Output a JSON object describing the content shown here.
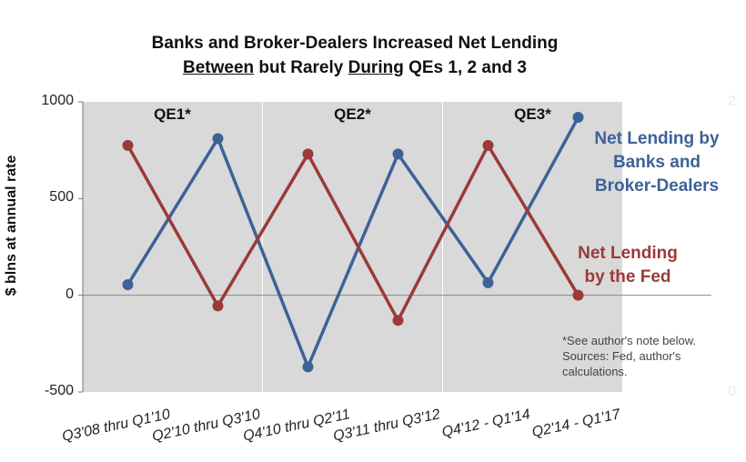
{
  "title_line1": "Banks and Broker-Dealers Increased Net Lending",
  "title_line2_a": "Between",
  "title_line2_b": " but Rarely ",
  "title_line2_c": "During",
  "title_line2_d": " QEs 1, 2 and 3",
  "note_lines": [
    "*See author's note below.",
    "Sources: Fed, author's",
    "calculations."
  ],
  "chart_data": {
    "type": "line",
    "ylabel": "$ blns at annual rate",
    "ylim": [
      -500,
      1000
    ],
    "yticks": [
      "1000",
      "500",
      "0",
      "-500"
    ],
    "yticks_right": [
      "2",
      "0"
    ],
    "categories": [
      "Q3'08 thru Q1'10",
      "Q2'10 thru Q3'10",
      "Q4'10 thru Q2'11",
      "Q3'11 thru Q3'12",
      "Q4'12 - Q1'14",
      "Q2'14 - Q1'17"
    ],
    "x": [
      1,
      2,
      3,
      4,
      5,
      6,
      7
    ],
    "series": [
      {
        "name": "Net Lending by Banks and Broker-Dealers",
        "name_lines": [
          "Net Lending by",
          "Banks and",
          "Broker-Dealers"
        ],
        "color": "#3d6296",
        "values": [
          55,
          810,
          -370,
          730,
          65,
          920
        ]
      },
      {
        "name": "Net Lending by the Fed",
        "name_lines": [
          "Net Lending",
          "by the Fed"
        ],
        "color": "#9b3a39",
        "values": [
          775,
          -55,
          730,
          -130,
          775,
          0
        ]
      }
    ],
    "shaded_regions": [
      {
        "label": "QE1*",
        "start": 1,
        "end": 2
      },
      {
        "label": "QE2*",
        "start": 3,
        "end": 4
      },
      {
        "label": "QE3*",
        "start": 5,
        "end": 6
      }
    ],
    "shade_color": "#d9d9d9",
    "grid": false,
    "legend": "inline-right"
  }
}
